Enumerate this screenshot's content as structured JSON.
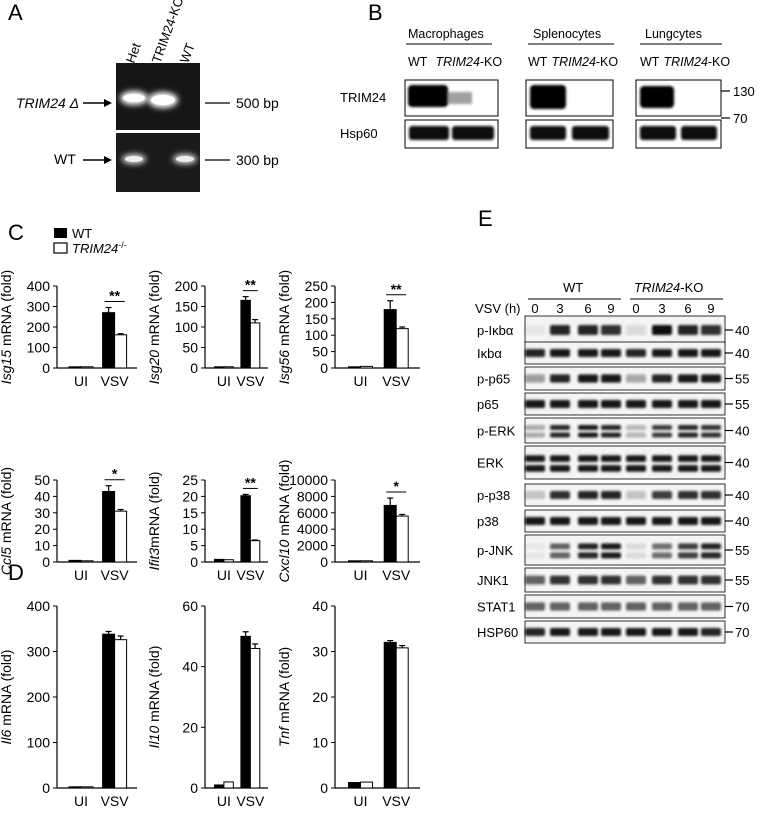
{
  "panels": {
    "A": {
      "letter": "A",
      "lanes": [
        "Het",
        "TRIM24-KO",
        "WT"
      ],
      "row_labels": [
        "TRIM24 Δ",
        "WT"
      ],
      "sizes": [
        "500 bp",
        "300 bp"
      ]
    },
    "B": {
      "letter": "B",
      "groups": [
        "Macrophages",
        "Splenocytes",
        "Lungcytes"
      ],
      "genotype_wt": "WT",
      "genotype_ko_italic": "TRIM24",
      "genotype_ko_suffix": "-KO",
      "proteins": [
        "TRIM24",
        "Hsp60"
      ],
      "markers": [
        "130",
        "70"
      ]
    },
    "C": {
      "letter": "C"
    },
    "D": {
      "letter": "D"
    },
    "E": {
      "letter": "E",
      "group_wt": "WT",
      "group_ko_italic": "TRIM24",
      "group_ko_suffix": "-KO",
      "time_label": "VSV (h)",
      "times": [
        "0",
        "3",
        "6",
        "9",
        "0",
        "3",
        "6",
        "9"
      ],
      "blots": [
        {
          "name": "p-Iκbα",
          "marker": "40"
        },
        {
          "name": "Iκbα",
          "marker": "40"
        },
        {
          "name": "p-p65",
          "marker": "55"
        },
        {
          "name": "p65",
          "marker": "55"
        },
        {
          "name": "p-ERK",
          "marker": "40"
        },
        {
          "name": "ERK",
          "marker": "40"
        },
        {
          "name": "p-p38",
          "marker": "40"
        },
        {
          "name": "p38",
          "marker": "40"
        },
        {
          "name": "p-JNK",
          "marker": "55"
        },
        {
          "name": "JNK1",
          "marker": "55"
        },
        {
          "name": "STAT1",
          "marker": "70"
        },
        {
          "name": "HSP60",
          "marker": "70"
        }
      ]
    }
  },
  "legend": {
    "wt": "WT",
    "ko_italic": "TRIM24",
    "ko_sup": "-/-"
  },
  "chart_data": [
    {
      "type": "bar",
      "panel": "C",
      "gene": "Isg15",
      "ylabel_suffix": " mRNA (fold)",
      "categories": [
        "UI",
        "VSV"
      ],
      "ylim": [
        0,
        400
      ],
      "yticks": [
        "0",
        "100",
        "200",
        "300",
        "400"
      ],
      "series": [
        {
          "name": "WT",
          "values": [
            1,
            270
          ],
          "errors": [
            0,
            25
          ]
        },
        {
          "name": "TRIM24-/-",
          "values": [
            1,
            162
          ],
          "errors": [
            0,
            5
          ]
        }
      ],
      "significance": "**"
    },
    {
      "type": "bar",
      "panel": "C",
      "gene": "Isg20",
      "ylabel_suffix": " mRNA (fold)",
      "categories": [
        "UI",
        "VSV"
      ],
      "ylim": [
        0,
        200
      ],
      "yticks": [
        "0",
        "50",
        "100",
        "150",
        "200"
      ],
      "series": [
        {
          "name": "WT",
          "values": [
            1,
            165
          ],
          "errors": [
            0,
            9
          ]
        },
        {
          "name": "TRIM24-/-",
          "values": [
            1,
            110
          ],
          "errors": [
            0,
            8
          ]
        }
      ],
      "significance": "**"
    },
    {
      "type": "bar",
      "panel": "C",
      "gene": "Isg56",
      "ylabel_suffix": " mRNA (fold)",
      "categories": [
        "UI",
        "VSV"
      ],
      "ylim": [
        0,
        250
      ],
      "yticks": [
        "0",
        "50",
        "100",
        "150",
        "200",
        "250"
      ],
      "series": [
        {
          "name": "WT",
          "values": [
            1,
            178
          ],
          "errors": [
            0,
            27
          ]
        },
        {
          "name": "TRIM24-/-",
          "values": [
            5,
            120
          ],
          "errors": [
            0,
            5
          ]
        }
      ],
      "significance": "**"
    },
    {
      "type": "bar",
      "panel": "C",
      "gene": "Ccl5",
      "ylabel_suffix": " mRNA (fold)",
      "categories": [
        "UI",
        "VSV"
      ],
      "ylim": [
        0,
        50
      ],
      "yticks": [
        "0",
        "10",
        "20",
        "30",
        "40",
        "50"
      ],
      "series": [
        {
          "name": "WT",
          "values": [
            1,
            43
          ],
          "errors": [
            0,
            3.5
          ]
        },
        {
          "name": "TRIM24-/-",
          "values": [
            0.5,
            31
          ],
          "errors": [
            0,
            1
          ]
        }
      ],
      "significance": "*"
    },
    {
      "type": "bar",
      "panel": "C",
      "gene": "Ifit3",
      "ylabel_suffix": "mRNA (fold)",
      "categories": [
        "UI",
        "VSV"
      ],
      "ylim": [
        0,
        25
      ],
      "yticks": [
        "0",
        "5",
        "10",
        "15",
        "20",
        "25"
      ],
      "series": [
        {
          "name": "WT",
          "values": [
            0.8,
            20.2
          ],
          "errors": [
            0,
            0.4
          ]
        },
        {
          "name": "TRIM24-/-",
          "values": [
            0.7,
            6.5
          ],
          "errors": [
            0,
            0.2
          ]
        }
      ],
      "significance": "**"
    },
    {
      "type": "bar",
      "panel": "C",
      "gene": "Cxcl10",
      "ylabel_suffix": " mRNA (fold)",
      "categories": [
        "UI",
        "VSV"
      ],
      "ylim": [
        0,
        10000
      ],
      "yticks": [
        "0",
        "2000",
        "4000",
        "6000",
        "8000",
        "10000"
      ],
      "series": [
        {
          "name": "WT",
          "values": [
            5,
            6900
          ],
          "errors": [
            0,
            900
          ]
        },
        {
          "name": "TRIM24-/-",
          "values": [
            5,
            5600
          ],
          "errors": [
            0,
            200
          ]
        }
      ],
      "significance": "*"
    },
    {
      "type": "bar",
      "panel": "D",
      "gene": "Il6",
      "ylabel_suffix": " mRNA (fold)",
      "categories": [
        "UI",
        "VSV"
      ],
      "ylim": [
        0,
        400
      ],
      "yticks": [
        "0",
        "100",
        "200",
        "300",
        "400"
      ],
      "series": [
        {
          "name": "WT",
          "values": [
            1,
            338
          ],
          "errors": [
            0,
            6
          ]
        },
        {
          "name": "TRIM24-/-",
          "values": [
            1,
            326
          ],
          "errors": [
            0,
            8
          ]
        }
      ],
      "significance": ""
    },
    {
      "type": "bar",
      "panel": "D",
      "gene": "Il10",
      "ylabel_suffix": " mRNA (fold)",
      "categories": [
        "UI",
        "VSV"
      ],
      "ylim": [
        0,
        60
      ],
      "yticks": [
        "0",
        "20",
        "40",
        "60"
      ],
      "series": [
        {
          "name": "WT",
          "values": [
            1,
            50
          ],
          "errors": [
            0,
            1.5
          ]
        },
        {
          "name": "TRIM24-/-",
          "values": [
            2,
            46
          ],
          "errors": [
            0,
            1.5
          ]
        }
      ],
      "significance": ""
    },
    {
      "type": "bar",
      "panel": "D",
      "gene": "Tnf",
      "ylabel_suffix": " mRNA (fold)",
      "categories": [
        "UI",
        "VSV"
      ],
      "ylim": [
        0,
        40
      ],
      "yticks": [
        "0",
        "10",
        "20",
        "30",
        "40"
      ],
      "series": [
        {
          "name": "WT",
          "values": [
            1.2,
            32
          ],
          "errors": [
            0,
            0.4
          ]
        },
        {
          "name": "TRIM24-/-",
          "values": [
            1.3,
            30.8
          ],
          "errors": [
            0,
            0.5
          ]
        }
      ],
      "significance": ""
    }
  ]
}
